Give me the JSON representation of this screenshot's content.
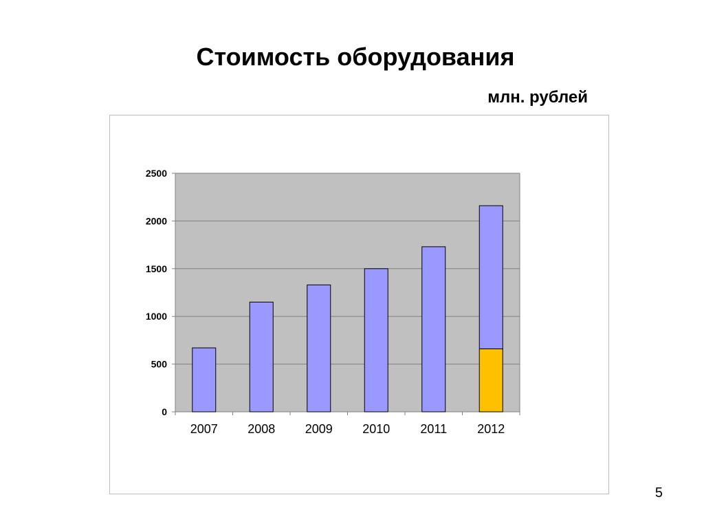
{
  "slide": {
    "title": "Стоимость оборудования",
    "units": "млн. рублей",
    "page_number": "5"
  },
  "colors": {
    "plot_bg": "#c0c0c0",
    "series_1": "#9999ff",
    "series_2": "#ffc000",
    "gridline": "#808080"
  },
  "chart_data": {
    "type": "bar",
    "stacked": true,
    "categories": [
      "2007",
      "2008",
      "2009",
      "2010",
      "2011",
      "2012"
    ],
    "series": [
      {
        "values": [
          0,
          0,
          0,
          0,
          0,
          660
        ],
        "color": "#ffc000"
      },
      {
        "values": [
          670,
          1150,
          1330,
          1500,
          1730,
          1500
        ],
        "color": "#9999ff"
      }
    ],
    "ylim": [
      0,
      2500
    ],
    "yticks": [
      0,
      500,
      1000,
      1500,
      2000,
      2500
    ],
    "grid": true,
    "legend": "none",
    "xlabel": "",
    "ylabel": ""
  }
}
